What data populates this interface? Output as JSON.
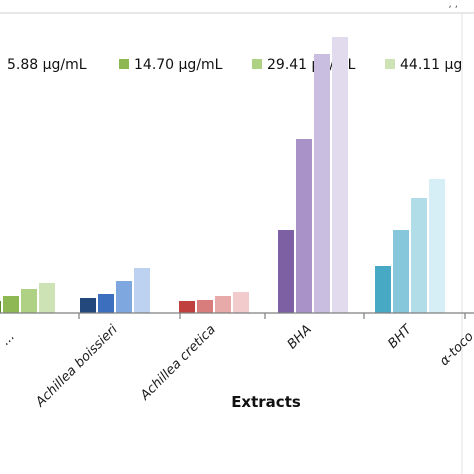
{
  "header_fragment": ", ,",
  "chart_data": {
    "type": "bar",
    "xlabel": "Extracts",
    "ylabel": "",
    "title": "",
    "grid": false,
    "legend_position": "top",
    "series": [
      {
        "name": "5.88  μg/mL",
        "label_prefix": "",
        "color_key": 0
      },
      {
        "name": "14.70 μg/mL",
        "color_key": 1
      },
      {
        "name": "29.41 μg/mL",
        "color_key": 2
      },
      {
        "name": "44.11 μg",
        "color_key": 3
      }
    ],
    "categories": [
      {
        "label": "...",
        "values": [
          12,
          17,
          24,
          30
        ],
        "colors": [
          "#5f8a2a",
          "#8db853",
          "#aed184",
          "#cde3b5"
        ],
        "partial": true
      },
      {
        "label": "Achillea boissieri",
        "values": [
          15,
          19,
          32,
          45
        ],
        "colors": [
          "#23487c",
          "#3d6fbf",
          "#7ea7e0",
          "#bcd2f0"
        ]
      },
      {
        "label": "Achillea cretica",
        "values": [
          12,
          13,
          17,
          21
        ],
        "colors": [
          "#c0403f",
          "#d87c7c",
          "#e8a9a9",
          "#f2cccc"
        ]
      },
      {
        "label": "BHA",
        "values": [
          83,
          174,
          259,
          276
        ],
        "colors": [
          "#7d5fa3",
          "#a892c8",
          "#c9bde0",
          "#e2dbee"
        ]
      },
      {
        "label": "BHT",
        "values": [
          47,
          83,
          115,
          134
        ],
        "colors": [
          "#48a9c5",
          "#86c7dc",
          "#b1dde9",
          "#d6eef5"
        ]
      },
      {
        "label": "α-toco",
        "values": [],
        "colors": [],
        "partial": true
      }
    ],
    "legend_colors": [
      "#5f8a2a",
      "#8db853",
      "#aed184",
      "#cde3b5"
    ]
  }
}
